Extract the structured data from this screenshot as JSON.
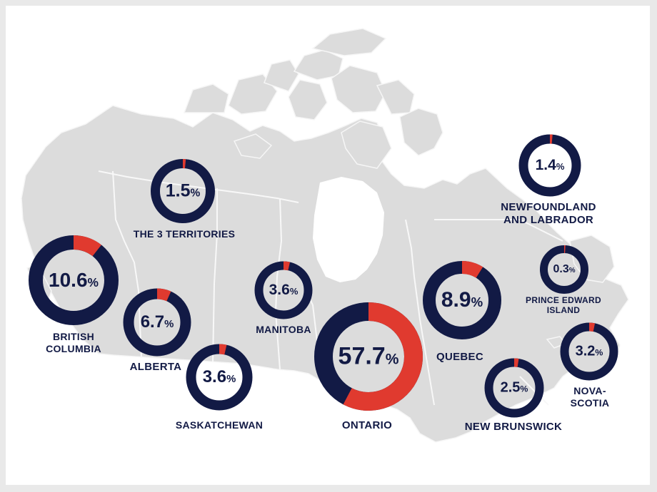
{
  "colors": {
    "navy": "#121a45",
    "red": "#e03a2f",
    "land": "#dcdcdc",
    "border": "#f7f7f7"
  },
  "regions": [
    {
      "key": "territories",
      "value": "1.5",
      "share": 0.015,
      "unit": "%",
      "label": "THE 3 TERRITORIES"
    },
    {
      "key": "bc",
      "value": "10.6",
      "share": 0.106,
      "unit": "%",
      "label": "BRITISH\nCOLUMBIA"
    },
    {
      "key": "alberta",
      "value": "6.7",
      "share": 0.067,
      "unit": "%",
      "label": "ALBERTA"
    },
    {
      "key": "saskatchewan",
      "value": "3.6",
      "share": 0.036,
      "unit": "%",
      "label": "SASKATCHEWAN"
    },
    {
      "key": "manitoba",
      "value": "3.6",
      "share": 0.036,
      "unit": "%",
      "label": "MANITOBA"
    },
    {
      "key": "ontario",
      "value": "57.7",
      "share": 0.577,
      "unit": "%",
      "label": "ONTARIO"
    },
    {
      "key": "quebec",
      "value": "8.9",
      "share": 0.089,
      "unit": "%",
      "label": "QUEBEC"
    },
    {
      "key": "newfoundland",
      "value": "1.4",
      "share": 0.014,
      "unit": "%",
      "label": "NEWFOUNDLAND\nAND LABRADOR"
    },
    {
      "key": "pei",
      "value": "0.3",
      "share": 0.003,
      "unit": "%",
      "label": "PRINCE EDWARD\nISLAND"
    },
    {
      "key": "nova_scotia",
      "value": "3.2",
      "share": 0.032,
      "unit": "%",
      "label": "NOVA-\nSCOTIA"
    },
    {
      "key": "new_brunswick",
      "value": "2.5",
      "share": 0.025,
      "unit": "%",
      "label": "NEW BRUNSWICK"
    }
  ]
}
